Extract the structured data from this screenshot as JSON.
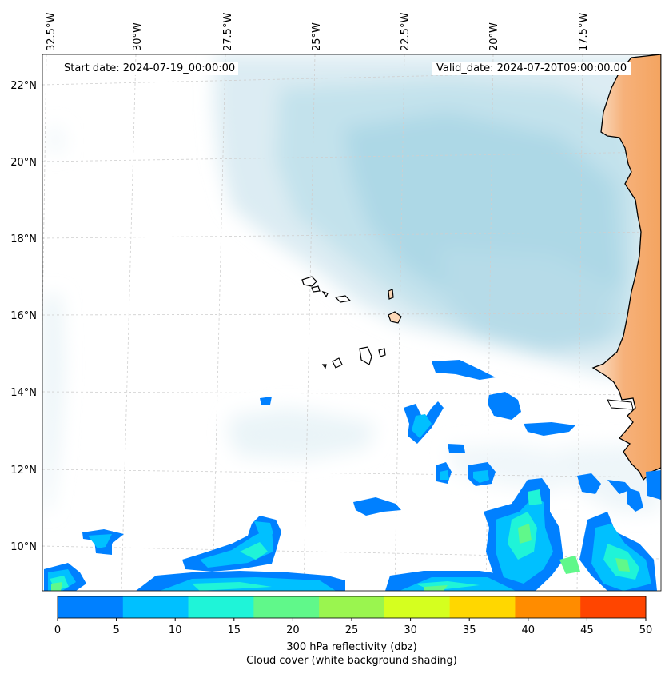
{
  "map": {
    "start_date_text": "Start date: 2024-07-19_00:00:00",
    "valid_date_text": "Valid_date: 2024-07-20T09:00:00.00",
    "lon_labels": [
      "32.5°W",
      "30°W",
      "27.5°W",
      "25°W",
      "22.5°W",
      "20°W",
      "17.5°W"
    ],
    "lat_labels": [
      "22°N",
      "20°N",
      "18°N",
      "16°N",
      "14°N",
      "12°N",
      "10°N"
    ],
    "colorbar": {
      "ticks": [
        "0",
        "5",
        "10",
        "15",
        "20",
        "25",
        "30",
        "35",
        "40",
        "45",
        "50"
      ],
      "colors": [
        "#0080ff",
        "#00c0ff",
        "#1ff4d8",
        "#60f88a",
        "#9af54f",
        "#d5ff1f",
        "#ffd700",
        "#ff8c00",
        "#ff4500"
      ],
      "label_line1": "300 hPa reflectivity (dbz)",
      "label_line2": "Cloud cover (white background shading)"
    },
    "colors": {
      "cloud": "#add8e6",
      "land_africa": "#f4a460",
      "land_island": "#fcd8b8",
      "grid": "#c8c8c8",
      "coast": "#000000"
    }
  }
}
